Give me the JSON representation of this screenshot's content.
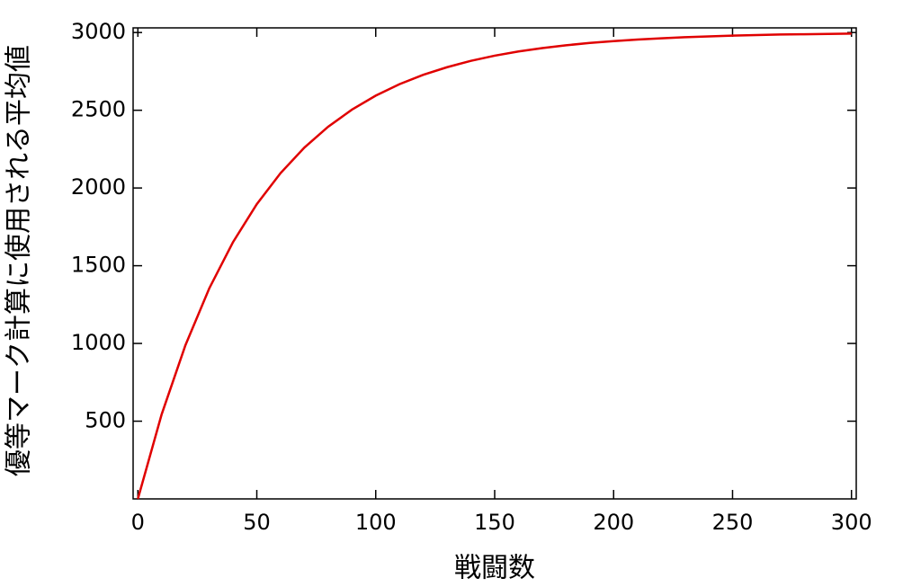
{
  "chart_data": {
    "type": "line",
    "x_label": "戦闘数",
    "y_label": "優等マーク計算に使用される平均値",
    "x": [
      0,
      10,
      20,
      30,
      40,
      50,
      60,
      70,
      80,
      90,
      100,
      110,
      120,
      130,
      140,
      150,
      160,
      170,
      180,
      190,
      200,
      210,
      220,
      230,
      240,
      250,
      260,
      270,
      280,
      290,
      300
    ],
    "series": [
      {
        "color": "#e00000",
        "values": [
          0,
          544,
          989,
          1354,
          1652,
          1896,
          2096,
          2260,
          2394,
          2504,
          2594,
          2668,
          2728,
          2777,
          2818,
          2851,
          2878,
          2900,
          2918,
          2933,
          2945,
          2955,
          2963,
          2970,
          2975,
          2980,
          2984,
          2987,
          2989,
          2991,
          2993
        ]
      }
    ],
    "xlim": [
      -2,
      302
    ],
    "xticks": [
      0,
      50,
      100,
      150,
      200,
      250,
      300
    ],
    "ylim": [
      0,
      3030
    ],
    "yticks": [
      500,
      1000,
      1500,
      2000,
      2500,
      3000
    ]
  }
}
